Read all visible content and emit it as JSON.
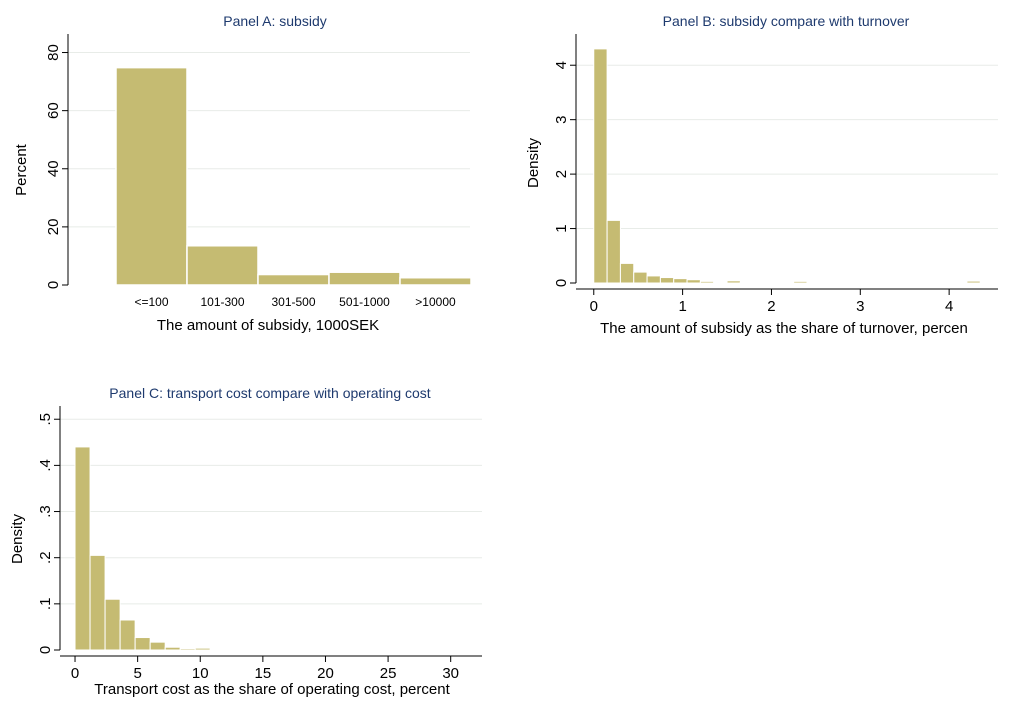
{
  "chart_data": [
    {
      "id": "panel-a",
      "type": "bar",
      "title": "Panel A: subsidy",
      "xlabel": "The amount of subsidy, 1000SEK",
      "ylabel": "Percent",
      "categories": [
        "<=100",
        "101-300",
        "301-500",
        "501-1000",
        ">10000"
      ],
      "values": [
        74.8,
        13.5,
        3.6,
        4.4,
        2.5
      ],
      "ylim": [
        0,
        85
      ],
      "yticks": [
        0,
        20,
        40,
        60,
        80
      ],
      "grid": true,
      "bar_color": "#c5bb72"
    },
    {
      "id": "panel-b",
      "type": "bar",
      "title": "Panel B: subsidy compare with turnover",
      "xlabel": "The amount of subsidy as the share of turnover, percen",
      "ylabel": "Density",
      "bin_width": 0.15,
      "bins": [
        {
          "x": 0.0,
          "value": 4.3
        },
        {
          "x": 0.15,
          "value": 1.15
        },
        {
          "x": 0.3,
          "value": 0.36
        },
        {
          "x": 0.45,
          "value": 0.2
        },
        {
          "x": 0.6,
          "value": 0.13
        },
        {
          "x": 0.75,
          "value": 0.1
        },
        {
          "x": 0.9,
          "value": 0.08
        },
        {
          "x": 1.05,
          "value": 0.06
        },
        {
          "x": 1.2,
          "value": 0.03
        },
        {
          "x": 1.35,
          "value": 0.015
        },
        {
          "x": 1.5,
          "value": 0.04
        },
        {
          "x": 1.65,
          "value": 0.01
        },
        {
          "x": 1.8,
          "value": 0.01
        },
        {
          "x": 2.25,
          "value": 0.03
        },
        {
          "x": 2.7,
          "value": 0.01
        },
        {
          "x": 3.15,
          "value": 0.01
        },
        {
          "x": 3.6,
          "value": 0.01
        },
        {
          "x": 4.2,
          "value": 0.035
        }
      ],
      "xlim": [
        -0.2,
        4.55
      ],
      "ylim": [
        0,
        4.5
      ],
      "xticks": [
        0,
        1,
        2,
        3,
        4
      ],
      "yticks": [
        0,
        1,
        2,
        3,
        4
      ],
      "grid": true,
      "bar_color": "#c5bb72"
    },
    {
      "id": "panel-c",
      "type": "bar",
      "title": "Panel C: transport cost compare with operating cost",
      "xlabel": "Transport cost as the share of operating cost, percent",
      "ylabel": "Density",
      "bin_width": 1.2,
      "bins": [
        {
          "x": 0.0,
          "value": 0.44
        },
        {
          "x": 1.2,
          "value": 0.205
        },
        {
          "x": 2.4,
          "value": 0.11
        },
        {
          "x": 3.6,
          "value": 0.065
        },
        {
          "x": 4.8,
          "value": 0.027
        },
        {
          "x": 6.0,
          "value": 0.017
        },
        {
          "x": 7.2,
          "value": 0.006
        },
        {
          "x": 8.4,
          "value": 0.003
        },
        {
          "x": 9.6,
          "value": 0.004
        },
        {
          "x": 10.8,
          "value": 0.002
        },
        {
          "x": 12.0,
          "value": 0.001
        },
        {
          "x": 13.2,
          "value": 0.001
        },
        {
          "x": 14.4,
          "value": 0.001
        },
        {
          "x": 18.0,
          "value": 0.001
        },
        {
          "x": 21.6,
          "value": 0.001
        },
        {
          "x": 27.6,
          "value": 0.001
        },
        {
          "x": 30.0,
          "value": 0.001
        }
      ],
      "xlim": [
        -1.2,
        32.5
      ],
      "ylim": [
        0,
        0.52
      ],
      "xticks": [
        0,
        5,
        10,
        15,
        20,
        25,
        30
      ],
      "yticks": [
        0,
        0.1,
        0.2,
        0.3,
        0.4,
        0.5
      ],
      "ytick_labels": [
        "0",
        ".1",
        ".2",
        ".3",
        ".4",
        ".5"
      ],
      "grid": true,
      "bar_color": "#c5bb72"
    }
  ]
}
